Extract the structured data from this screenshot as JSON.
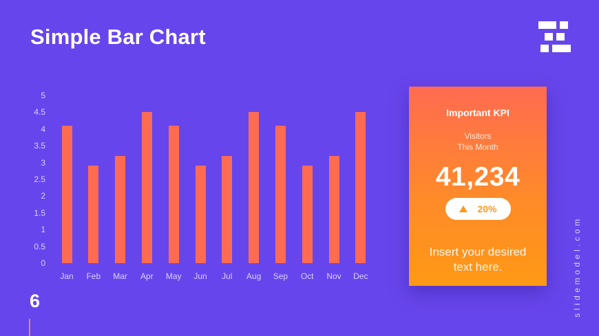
{
  "slide": {
    "title": "Simple Bar Chart",
    "page_number": "6",
    "vertical_brand_text": "slidemodel.com",
    "background_color": "#6745ec",
    "logo_icon": "brick-logo-icon"
  },
  "kpi": {
    "title": "Important KPI",
    "subtitle_line1": "Visitors",
    "subtitle_line2": "This Month",
    "value": "41,234",
    "change_icon": "triangle-up-icon",
    "change": "20%",
    "text_line1": "Insert your desired",
    "text_line2": "text here.",
    "gradient_colors": [
      "#ff6b51",
      "#ff9915"
    ]
  },
  "chart_data": {
    "type": "bar",
    "title": "Simple Bar Chart",
    "xlabel": "",
    "ylabel": "",
    "categories": [
      "Jan",
      "Feb",
      "Mar",
      "Apr",
      "May",
      "Jun",
      "Jul",
      "Aug",
      "Sep",
      "Oct",
      "Nov",
      "Dec"
    ],
    "values": [
      4.1,
      2.9,
      3.2,
      4.5,
      4.1,
      2.9,
      3.2,
      4.5,
      4.1,
      2.9,
      3.2,
      4.5
    ],
    "ylim": [
      0,
      5
    ],
    "yticks": [
      "0",
      "0.5",
      "1",
      "1.5",
      "2",
      "2.5",
      "3",
      "3.5",
      "4",
      "4.5",
      "5"
    ],
    "grid": false,
    "legend": "none",
    "bar_color": "#ff6b51"
  }
}
